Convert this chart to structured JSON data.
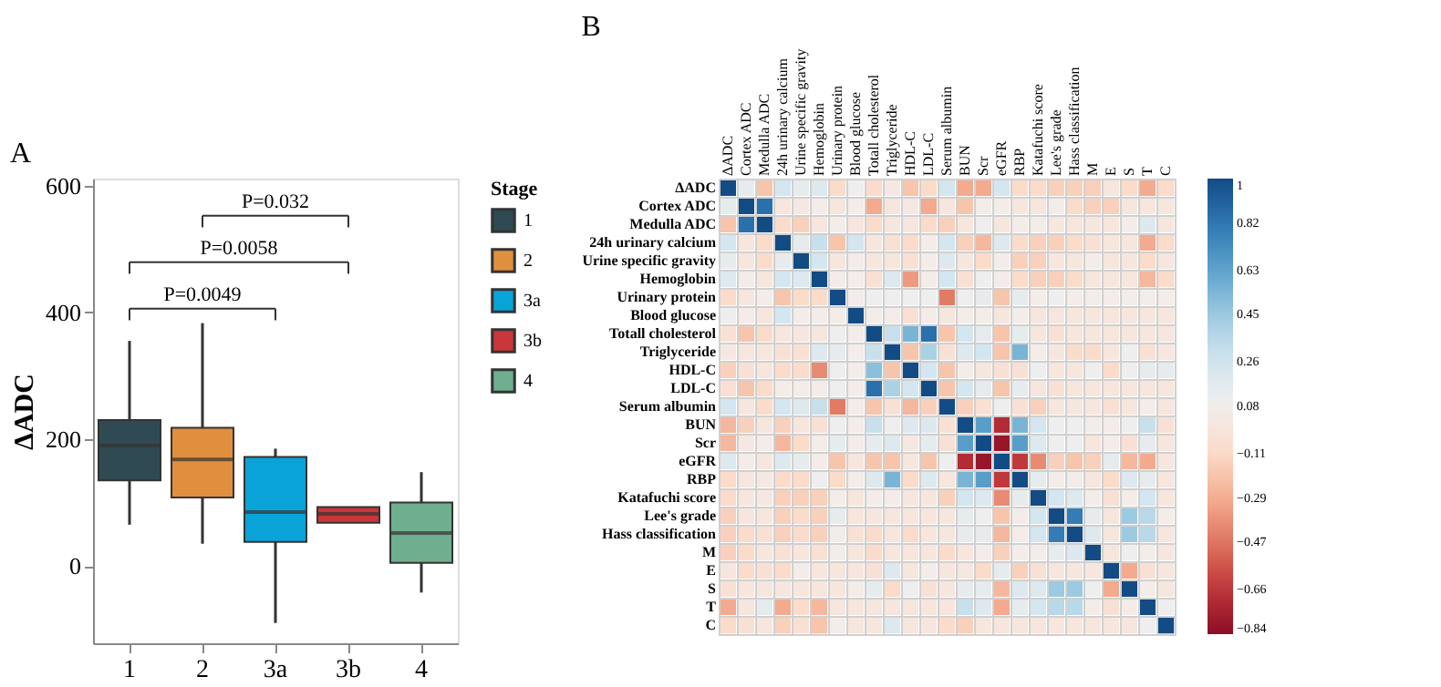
{
  "chart_data": [
    {
      "type": "box",
      "title": "A",
      "ylabel": "ΔADC",
      "legend_title": "Stage",
      "legend": "right",
      "categories": [
        "1",
        "2",
        "3a",
        "3b",
        "4"
      ],
      "series": [
        {
          "name": "1",
          "color": "#2f4a52",
          "boxes": [
            {
              "low": 65,
              "q1": 135,
              "median": 190,
              "q3": 230,
              "high": 355
            },
            null,
            null,
            null,
            null
          ]
        },
        {
          "name": "2",
          "color": "#e08f3e",
          "boxes": [
            null,
            {
              "low": 35,
              "q1": 108,
              "median": 168,
              "q3": 218,
              "high": 383
            },
            null,
            null,
            null
          ]
        },
        {
          "name": "3a",
          "color": "#0aa3d8",
          "boxes": [
            null,
            null,
            {
              "low": -90,
              "q1": 38,
              "median": 85,
              "q3": 172,
              "high": 185
            },
            null,
            null
          ]
        },
        {
          "name": "3b",
          "color": "#c9373a",
          "boxes": [
            null,
            null,
            null,
            {
              "low": 68,
              "q1": 68,
              "median": 82,
              "q3": 93,
              "high": 93
            },
            null
          ]
        },
        {
          "name": "4",
          "color": "#6fae8e",
          "boxes": [
            null,
            null,
            null,
            null,
            {
              "low": -42,
              "q1": 5,
              "median": 52,
              "q3": 100,
              "high": 148
            }
          ]
        }
      ],
      "ylim": [
        -122,
        611
      ],
      "yticks": [
        0,
        200,
        400,
        600
      ],
      "annotations": [
        "P=0.032",
        "P=0.0058",
        "P=0.0049"
      ]
    },
    {
      "type": "heatmap",
      "title": "B",
      "categories": [
        "ΔADC",
        "Cortex ADC",
        "Medulla ADC",
        "24h urinary calcium",
        "Urine specific gravity",
        "Hemoglobin",
        "Urinary protein",
        "Blood glucose",
        "Totall cholesterol",
        "Triglyceride",
        "HDL-C",
        "LDL-C",
        "Serum albumin",
        "BUN",
        "Scr",
        "eGFR",
        "RBP",
        "Katafuchi score",
        "Lee's grade",
        "Hass classification",
        "M",
        "E",
        "S",
        "T",
        "C"
      ],
      "y_categories": [
        "ΔADC",
        "Cortex ADC",
        "Medulla ADC",
        "24h urinary calcium",
        "Urine specific gravity",
        "Hemoglobin",
        "Urinary protein",
        "Blood glucose",
        "Totall cholesterol",
        "Triglyceride",
        "HDL-C",
        "LDL-C",
        "Serum albumin",
        "BUN",
        "Scr",
        "eGFR",
        "RBP",
        "Katafuchi score",
        "Lee's grade",
        "Hass classification",
        "M",
        "E",
        "S",
        "T",
        "C"
      ],
      "cells": [
        [
          1,
          0.15,
          -0.2,
          0.25,
          0.15,
          0.2,
          -0.1,
          0.1,
          -0.1,
          0.02,
          -0.2,
          -0.1,
          0.25,
          -0.3,
          -0.3,
          0.25,
          -0.1,
          -0.1,
          -0.15,
          -0.15,
          -0.15,
          0,
          -0.1,
          -0.3,
          -0.1
        ],
        [
          0.15,
          1,
          0.85,
          0,
          0.02,
          0.05,
          0,
          0.05,
          -0.3,
          0,
          0.02,
          -0.3,
          0,
          -0.2,
          0.05,
          0.05,
          0,
          0,
          0.05,
          -0.1,
          -0.15,
          -0.15,
          0,
          0,
          0
        ],
        [
          -0.2,
          0.85,
          1,
          -0.1,
          -0.15,
          0,
          0.05,
          0,
          -0.1,
          0,
          0,
          -0.1,
          -0.15,
          0,
          0.1,
          0,
          0.05,
          0.05,
          0,
          0,
          0,
          0,
          0.05,
          0.2,
          0
        ],
        [
          0.25,
          0,
          -0.1,
          1,
          0.15,
          0.3,
          -0.2,
          0.25,
          0,
          -0.05,
          -0.1,
          0.05,
          0.25,
          -0.15,
          -0.25,
          0.2,
          -0.1,
          -0.15,
          -0.15,
          -0.1,
          -0.05,
          0,
          0,
          -0.3,
          -0.1
        ],
        [
          0.15,
          0,
          -0.1,
          0.15,
          1,
          0.25,
          0,
          0.05,
          0,
          0,
          -0.05,
          0.05,
          0.2,
          0,
          -0.1,
          0.05,
          -0.15,
          -0.15,
          0,
          0,
          0.05,
          0,
          0,
          -0.1,
          0
        ],
        [
          0.2,
          0.05,
          0,
          0.25,
          0.2,
          1,
          0.05,
          0.05,
          -0.05,
          0.2,
          -0.35,
          0.05,
          0.25,
          -0.05,
          0.1,
          0.05,
          -0.1,
          -0.15,
          -0.15,
          -0.1,
          0,
          0,
          0,
          -0.25,
          -0.1
        ],
        [
          -0.1,
          0,
          0.05,
          -0.2,
          -0.1,
          -0.1,
          1,
          0.05,
          0.1,
          0.1,
          0.1,
          0.1,
          -0.45,
          0.1,
          0.15,
          -0.2,
          0.15,
          0.05,
          0.1,
          0.05,
          0.05,
          0.05,
          0.05,
          0.05,
          0.05
        ],
        [
          0.1,
          0.05,
          0,
          0.25,
          0.05,
          0.05,
          0.05,
          1,
          0.05,
          0.05,
          -0.05,
          0.05,
          0,
          0.05,
          0.05,
          0,
          0.05,
          0,
          0,
          0,
          0,
          0,
          0,
          0,
          0
        ],
        [
          -0.05,
          -0.2,
          -0.1,
          0,
          0,
          0,
          0.1,
          0.05,
          1,
          0.3,
          0.55,
          0.85,
          -0.2,
          0.25,
          0.15,
          -0.2,
          0.15,
          0,
          -0.05,
          0,
          0,
          0,
          0,
          0,
          0
        ],
        [
          0.02,
          0,
          0,
          -0.05,
          -0.05,
          0.2,
          0.15,
          0.05,
          0.3,
          1,
          -0.2,
          0.4,
          -0.05,
          0.2,
          0.25,
          -0.2,
          0.55,
          0.05,
          0,
          -0.1,
          -0.1,
          0,
          0.1,
          -0.05,
          0
        ],
        [
          -0.15,
          -0.05,
          0,
          -0.1,
          -0.1,
          -0.4,
          0.1,
          0.05,
          0.5,
          -0.2,
          1,
          0.25,
          -0.2,
          0.05,
          0,
          -0.05,
          -0.05,
          0.1,
          0,
          0,
          0.1,
          -0.1,
          0.1,
          0.15,
          0.15
        ],
        [
          -0.05,
          -0.2,
          -0.1,
          0.05,
          0.05,
          0.05,
          0.1,
          0.05,
          0.85,
          0.4,
          0.25,
          1,
          -0.2,
          0.25,
          0.15,
          -0.2,
          0.15,
          0,
          -0.05,
          0,
          0,
          0,
          0,
          0,
          0
        ],
        [
          0.25,
          0,
          -0.1,
          0.25,
          0.2,
          0.3,
          -0.45,
          0.05,
          -0.2,
          -0.05,
          -0.25,
          -0.15,
          1,
          -0.15,
          -0.05,
          0.1,
          -0.05,
          -0.15,
          0,
          0,
          0,
          -0.05,
          0,
          0.05,
          0
        ],
        [
          -0.25,
          -0.15,
          0,
          -0.15,
          0,
          -0.05,
          0.1,
          0.05,
          0.3,
          0.1,
          0.2,
          0.2,
          -0.05,
          1,
          0.65,
          -0.7,
          0.55,
          0.25,
          0.1,
          0.1,
          0.05,
          0.05,
          0.1,
          0.3,
          -0.05
        ],
        [
          -0.25,
          0.02,
          0.05,
          -0.25,
          -0.1,
          0.05,
          0.15,
          0.05,
          0.15,
          0.2,
          0.02,
          0.15,
          -0.05,
          0.65,
          1,
          -0.8,
          0.65,
          0.2,
          0.1,
          0.1,
          0,
          0.05,
          -0.05,
          0.15,
          0
        ],
        [
          0.2,
          0.05,
          0,
          0.2,
          0.15,
          0.05,
          -0.2,
          0,
          -0.2,
          -0.2,
          0,
          -0.2,
          0.1,
          -0.7,
          -0.8,
          1,
          -0.65,
          -0.4,
          -0.15,
          -0.2,
          -0.15,
          0.15,
          -0.25,
          -0.3,
          0
        ],
        [
          -0.1,
          0,
          0.02,
          -0.1,
          -0.1,
          0.1,
          -0.1,
          0.05,
          0.2,
          0.55,
          -0.1,
          0.2,
          0,
          0.55,
          0.65,
          -0.65,
          1,
          0.15,
          0.05,
          0.05,
          0,
          -0.1,
          0.2,
          0.15,
          0
        ],
        [
          -0.1,
          0,
          0.02,
          -0.15,
          -0.15,
          -0.15,
          0.05,
          0,
          0.05,
          0.05,
          0,
          0,
          -0.15,
          0.25,
          0.2,
          -0.4,
          0.15,
          1,
          0.25,
          0.2,
          0.05,
          -0.05,
          0.05,
          0.25,
          0
        ],
        [
          -0.15,
          0,
          0,
          -0.15,
          -0.1,
          -0.15,
          0.15,
          0,
          0,
          0,
          0,
          0,
          0,
          0.15,
          0.1,
          -0.2,
          0.05,
          0.25,
          1,
          0.8,
          0.15,
          0,
          0.45,
          0.35,
          0.05
        ],
        [
          -0.15,
          -0.1,
          -0.05,
          -0.15,
          -0.1,
          -0.15,
          0.05,
          -0.05,
          -0.1,
          0,
          -0.1,
          0,
          0,
          0.15,
          0.15,
          -0.25,
          0.05,
          0.25,
          0.8,
          1,
          0.2,
          0,
          0.45,
          0.35,
          0
        ],
        [
          -0.15,
          -0.1,
          0,
          -0.05,
          0,
          -0.05,
          0.05,
          0,
          -0.1,
          0,
          0,
          0,
          -0.1,
          0,
          0.05,
          -0.15,
          0.05,
          0.05,
          0.15,
          0.2,
          1,
          0,
          0.1,
          0.05,
          0
        ],
        [
          0,
          -0.1,
          -0.05,
          -0.1,
          0.05,
          0,
          0,
          0,
          -0.05,
          0.2,
          0,
          0.05,
          0,
          0.02,
          -0.1,
          0.15,
          -0.15,
          -0.05,
          0,
          0,
          0,
          1,
          -0.3,
          -0.05,
          0
        ],
        [
          -0.05,
          0,
          0,
          0,
          0,
          0,
          0,
          0.05,
          0.15,
          -0.1,
          0.1,
          -0.05,
          0,
          0.15,
          0.15,
          -0.25,
          0.2,
          0.2,
          0.45,
          0.45,
          0.1,
          -0.3,
          1,
          0.05,
          0
        ],
        [
          -0.3,
          0,
          0.15,
          -0.3,
          -0.1,
          -0.25,
          0,
          0,
          0,
          0,
          0,
          0,
          0,
          0.3,
          0.2,
          -0.3,
          0.15,
          0.25,
          0.35,
          0.35,
          0.05,
          -0.05,
          0.05,
          1,
          0.1
        ],
        [
          -0.1,
          -0.05,
          0,
          -0.15,
          -0.05,
          -0.2,
          0.05,
          0,
          0,
          0.2,
          0,
          0,
          -0.1,
          -0.15,
          0,
          0,
          0,
          0,
          0,
          0,
          0,
          0,
          0,
          0.1,
          1
        ]
      ],
      "clim": [
        -0.84,
        1
      ],
      "cticks": [
        1,
        0.82,
        0.63,
        0.45,
        0.26,
        0.08,
        -0.11,
        -0.29,
        -0.47,
        -0.66,
        -0.84
      ]
    }
  ]
}
